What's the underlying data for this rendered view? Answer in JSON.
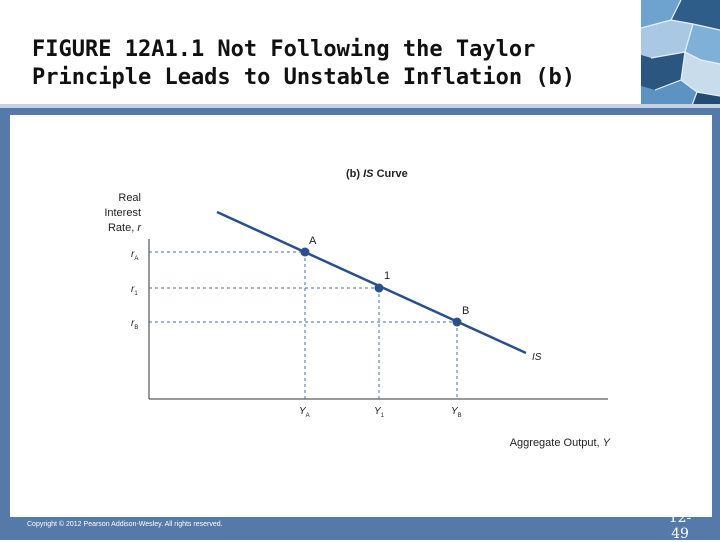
{
  "slide": {
    "title_line1": "FIGURE 12A1.1  Not Following the Taylor",
    "title_line2": "Principle Leads to Unstable Inflation (b)",
    "copyright": "Copyright © 2012 Pearson Addison-Wesley. All rights reserved.",
    "page_number_line1": "12-",
    "page_number_line2": "49",
    "frame_color": "#5579a9"
  },
  "diagram": {
    "panel_title_prefix": "(b) ",
    "panel_title_emph": "IS",
    "panel_title_suffix": " Curve",
    "y_axis_label_lines": [
      "Real",
      "Interest",
      "Rate, "
    ],
    "y_axis_label_var": "r",
    "x_axis_label_prefix": "Aggregate Output, ",
    "x_axis_label_var": "Y",
    "curve_label": "IS",
    "y_ticks": [
      {
        "main": "r",
        "sub": "A"
      },
      {
        "main": "r",
        "sub": "1"
      },
      {
        "main": "r",
        "sub": "B"
      }
    ],
    "x_ticks": [
      {
        "main": "Y",
        "sub": "A"
      },
      {
        "main": "Y",
        "sub": "1"
      },
      {
        "main": "Y",
        "sub": "B"
      }
    ],
    "points": [
      {
        "label": "A"
      },
      {
        "label": "1"
      },
      {
        "label": "B"
      }
    ],
    "colors": {
      "curve": "#2b4f8c",
      "point": "#2b4f8c",
      "guide": "#4a6fa5",
      "axis": "#333333"
    }
  }
}
